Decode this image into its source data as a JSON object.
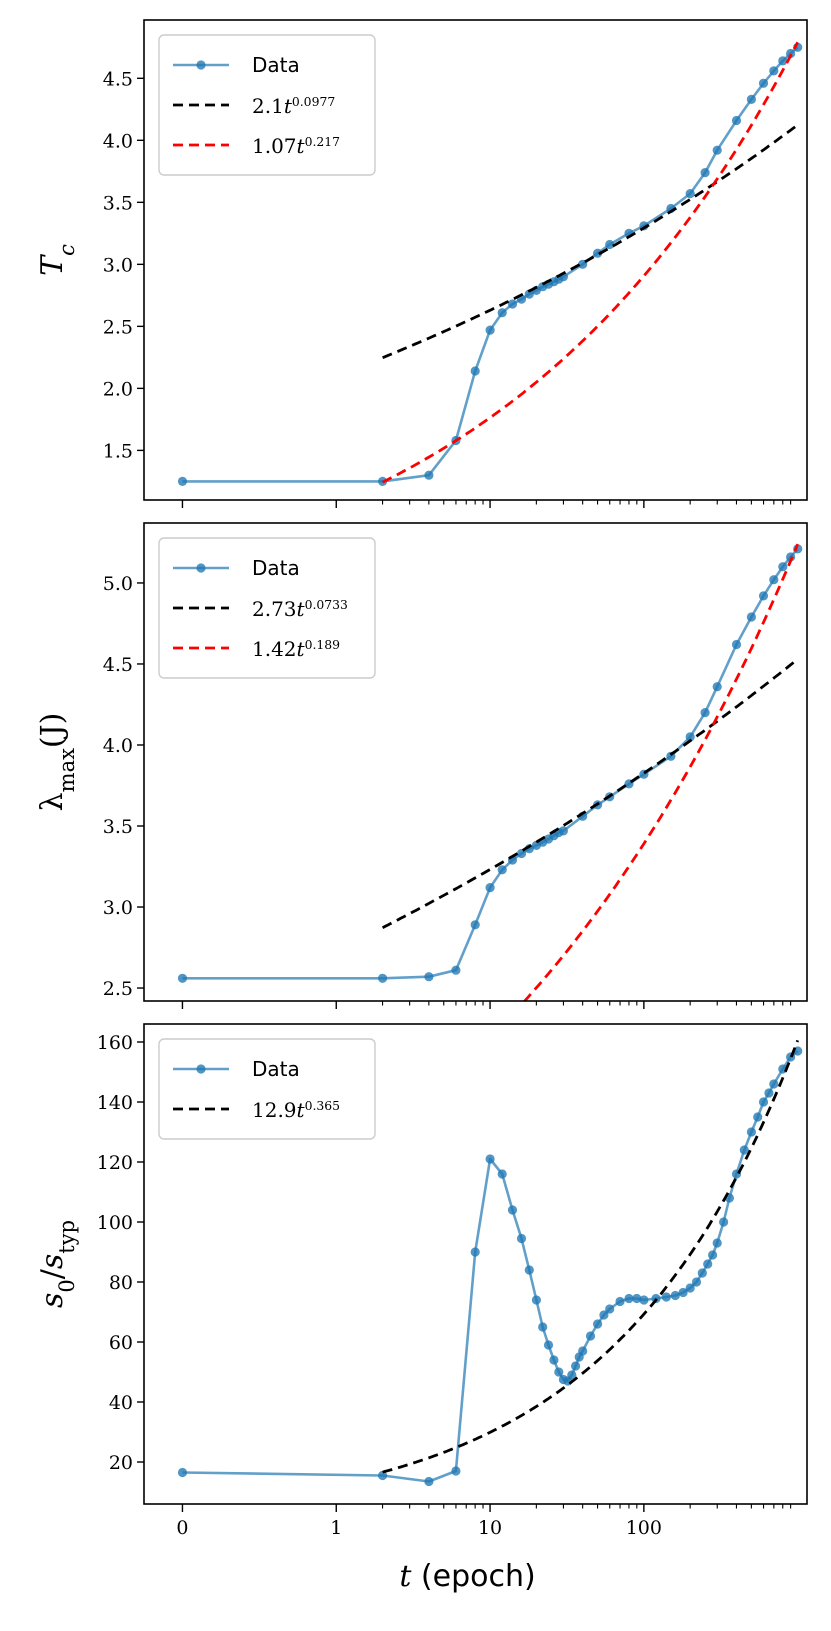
{
  "colors": {
    "data": "#1f77b4",
    "fit_black": "#000000",
    "fit_red": "#ff0000"
  },
  "chart_data": [
    {
      "type": "line",
      "ylabel": "T_c",
      "ylabel_main": "T",
      "ylabel_sub": "c",
      "xscale": "symlog",
      "xlim": [
        -0.25,
        1150
      ],
      "ylim": [
        1.1,
        4.97
      ],
      "yticks": [
        1.5,
        2.0,
        2.5,
        3.0,
        3.5,
        4.0,
        4.5
      ],
      "ytick_labels": [
        "1.5",
        "2.0",
        "2.5",
        "3.0",
        "3.5",
        "4.0",
        "4.5"
      ],
      "legend": [
        "Data",
        "2.1t^0.0977",
        "1.07t^0.217"
      ],
      "legend_labels": [
        {
          "text": "Data"
        },
        {
          "coef": "2.1",
          "var": "t",
          "exp": "0.0977"
        },
        {
          "coef": "1.07",
          "var": "t",
          "exp": "0.217"
        }
      ],
      "legend_position": "top-left",
      "series": [
        {
          "name": "Data",
          "style": "line-dot",
          "kind": "data",
          "x": [
            0,
            2,
            4,
            6,
            8,
            10,
            12,
            14,
            16,
            18,
            20,
            22,
            24,
            26,
            28,
            30,
            40,
            50,
            60,
            80,
            100,
            150,
            200,
            250,
            300,
            400,
            500,
            600,
            700,
            800,
            900,
            1000
          ],
          "y": [
            1.25,
            1.25,
            1.3,
            1.58,
            2.14,
            2.47,
            2.61,
            2.68,
            2.72,
            2.76,
            2.79,
            2.82,
            2.84,
            2.86,
            2.88,
            2.9,
            3.0,
            3.09,
            3.16,
            3.25,
            3.31,
            3.45,
            3.57,
            3.74,
            3.92,
            4.16,
            4.33,
            4.46,
            4.56,
            4.64,
            4.7,
            4.75
          ]
        },
        {
          "name": "2.1t^0.0977",
          "style": "dash",
          "kind": "fit",
          "coef": 2.1,
          "exp": 0.0977,
          "x_start": 2,
          "x_end": 1000
        },
        {
          "name": "1.07t^0.217",
          "style": "dash",
          "kind": "fit",
          "coef": 1.07,
          "exp": 0.217,
          "x_start": 2,
          "x_end": 1000
        }
      ]
    },
    {
      "type": "line",
      "ylabel": "λ_max(J)",
      "ylabel_main": "λ",
      "ylabel_sub": "max",
      "ylabel_tail": "(J)",
      "xscale": "symlog",
      "xlim": [
        -0.25,
        1150
      ],
      "ylim": [
        2.42,
        5.37
      ],
      "yticks": [
        2.5,
        3.0,
        3.5,
        4.0,
        4.5,
        5.0
      ],
      "ytick_labels": [
        "2.5",
        "3.0",
        "3.5",
        "4.0",
        "4.5",
        "5.0"
      ],
      "legend": [
        "Data",
        "2.73t^0.0733",
        "1.42t^0.189"
      ],
      "legend_labels": [
        {
          "text": "Data"
        },
        {
          "coef": "2.73",
          "var": "t",
          "exp": "0.0733"
        },
        {
          "coef": "1.42",
          "var": "t",
          "exp": "0.189"
        }
      ],
      "legend_position": "top-left",
      "series": [
        {
          "name": "Data",
          "style": "line-dot",
          "kind": "data",
          "x": [
            0,
            2,
            4,
            6,
            8,
            10,
            12,
            14,
            16,
            18,
            20,
            22,
            24,
            26,
            28,
            30,
            40,
            50,
            60,
            80,
            100,
            150,
            200,
            250,
            300,
            400,
            500,
            600,
            700,
            800,
            900,
            1000
          ],
          "y": [
            2.56,
            2.56,
            2.57,
            2.61,
            2.89,
            3.12,
            3.23,
            3.29,
            3.33,
            3.36,
            3.38,
            3.4,
            3.42,
            3.44,
            3.46,
            3.47,
            3.56,
            3.63,
            3.68,
            3.76,
            3.82,
            3.93,
            4.05,
            4.2,
            4.36,
            4.62,
            4.79,
            4.92,
            5.02,
            5.1,
            5.16,
            5.21
          ]
        },
        {
          "name": "2.73t^0.0733",
          "style": "dash",
          "kind": "fit",
          "coef": 2.73,
          "exp": 0.0733,
          "x_start": 2,
          "x_end": 1000
        },
        {
          "name": "1.42t^0.189",
          "style": "dash",
          "kind": "fit",
          "coef": 1.42,
          "exp": 0.189,
          "x_start": 2,
          "x_end": 1000
        }
      ]
    },
    {
      "type": "line",
      "ylabel": "s_0/s_typ",
      "xscale": "symlog",
      "xlim": [
        -0.25,
        1150
      ],
      "ylim": [
        6,
        166
      ],
      "yticks": [
        20,
        40,
        60,
        80,
        100,
        120,
        140,
        160
      ],
      "ytick_labels": [
        "20",
        "40",
        "60",
        "80",
        "100",
        "120",
        "140",
        "160"
      ],
      "legend": [
        "Data",
        "12.9t^0.365"
      ],
      "legend_labels": [
        {
          "text": "Data"
        },
        {
          "coef": "12.9",
          "var": "t",
          "exp": "0.365"
        }
      ],
      "legend_position": "top-left",
      "xticks": [
        0,
        1,
        10,
        100
      ],
      "xtick_labels": [
        "0",
        "1",
        "10",
        "100"
      ],
      "xlabel_var": "t",
      "xlabel_unit": "(epoch)",
      "series": [
        {
          "name": "Data",
          "style": "line-dot",
          "kind": "data",
          "x": [
            0,
            2,
            4,
            6,
            8,
            10,
            12,
            14,
            16,
            18,
            20,
            22,
            24,
            26,
            28,
            30,
            32,
            34,
            36,
            38,
            40,
            45,
            50,
            55,
            60,
            70,
            80,
            90,
            100,
            120,
            140,
            160,
            180,
            200,
            220,
            240,
            260,
            280,
            300,
            330,
            360,
            400,
            450,
            500,
            550,
            600,
            650,
            700,
            800,
            900,
            1000
          ],
          "y": [
            16.5,
            15.5,
            13.5,
            17,
            90,
            121,
            116,
            104,
            94.5,
            84,
            74,
            65,
            59,
            54,
            50,
            47.5,
            47,
            49,
            52,
            55,
            57,
            62,
            66,
            69,
            71,
            73.5,
            74.5,
            74.5,
            74,
            74.5,
            75,
            75.5,
            76.5,
            78,
            80,
            83,
            86,
            89,
            93,
            100,
            108,
            116,
            124,
            130,
            135,
            140,
            143,
            146,
            151,
            155,
            157
          ]
        },
        {
          "name": "12.9t^0.365",
          "style": "dash",
          "kind": "fit",
          "coef": 12.9,
          "exp": 0.365,
          "x_start": 2,
          "x_end": 1000
        }
      ]
    }
  ]
}
